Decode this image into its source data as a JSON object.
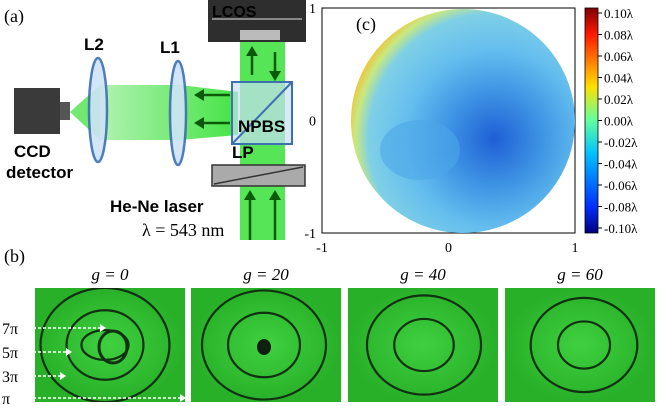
{
  "panel_a": {
    "label": "(a)",
    "lcos": "LCOS",
    "l2": "L2",
    "l1": "L1",
    "npbs": "NPBS",
    "ccd": "CCD",
    "detector": "detector",
    "lp": "LP",
    "laser": "He-Ne laser",
    "wavelength": "λ = 543 nm"
  },
  "panel_c": {
    "label": "(c)",
    "x_ticks": [
      "-1",
      "0",
      "1"
    ],
    "y_ticks": [
      "1",
      "0",
      "-1"
    ],
    "colorbar_ticks": [
      "0.10λ",
      "0.08λ",
      "0.06λ",
      "0.04λ",
      "0.02λ",
      "0.00λ",
      "-0.02λ",
      "-0.04λ",
      "-0.06λ",
      "-0.08λ",
      "-0.10λ"
    ]
  },
  "panel_b": {
    "label": "(b)",
    "titles": [
      "g = 0",
      "g = 20",
      "g = 40",
      "g = 60"
    ],
    "fringe_labels": [
      "7π",
      "5π",
      "3π",
      "π"
    ]
  }
}
